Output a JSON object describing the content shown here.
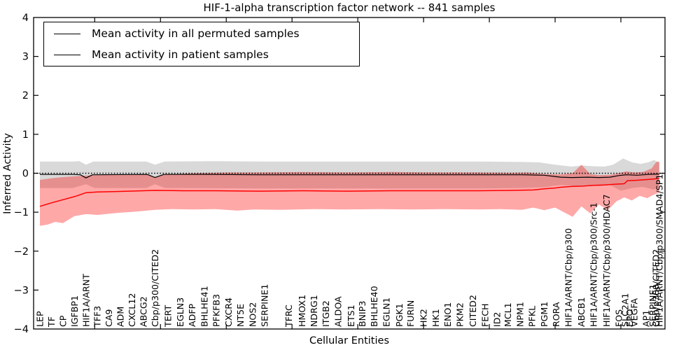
{
  "title": "HIF-1-alpha transcription factor network -- 841 samples",
  "axes": {
    "xlabel": "Cellular Entities",
    "ylabel": "Inferred Activity"
  },
  "legend": {
    "items": [
      {
        "label": "Mean activity in all permuted samples",
        "color": "#000000"
      },
      {
        "label": "Mean activity in patient samples",
        "color": "#ff0000"
      }
    ]
  },
  "chart_data": {
    "type": "line",
    "title": "HIF-1-alpha transcription factor network -- 841 samples",
    "xlabel": "Cellular Entities",
    "ylabel": "Inferred Activity",
    "ylim": [
      -4,
      4
    ],
    "yticks": [
      -4,
      -3,
      -2,
      -1,
      0,
      1,
      2,
      3,
      4
    ],
    "xticks_at": [
      5,
      11,
      17,
      23,
      29,
      35,
      41,
      47,
      53
    ],
    "grid": false,
    "zero_reference_line": 0,
    "legend_position": "upper left",
    "x_unit": "cellular-entity index (labels rotated 90°; rightmost labels overlap illegibly)",
    "categories": [
      {
        "label": "LEP",
        "x": 0
      },
      {
        "label": "TF",
        "x": 1.05
      },
      {
        "label": "CP",
        "x": 2.1
      },
      {
        "label": "IGFBP1",
        "x": 3.15
      },
      {
        "label": "HIF1A/ARNT",
        "x": 4.2
      },
      {
        "label": "TFF3",
        "x": 5.25
      },
      {
        "label": "CA9",
        "x": 6.3
      },
      {
        "label": "ADM",
        "x": 7.35
      },
      {
        "label": "CXCL12",
        "x": 8.4
      },
      {
        "label": "ABCG2",
        "x": 9.45
      },
      {
        "label": "Cbp/p300/CITED2",
        "x": 10.5
      },
      {
        "label": "TERT",
        "x": 11.7
      },
      {
        "label": "EGLN3",
        "x": 12.8
      },
      {
        "label": "ADFP",
        "x": 13.9
      },
      {
        "label": "BHLHE41",
        "x": 15.0
      },
      {
        "label": "PFKFB3",
        "x": 16.1
      },
      {
        "label": "CXCR4",
        "x": 17.2
      },
      {
        "label": "NT5E",
        "x": 18.3
      },
      {
        "label": "NOS2",
        "x": 19.4
      },
      {
        "label": "SERPINE1",
        "x": 20.5
      },
      {
        "label": "TFRC",
        "x": 22.7
      },
      {
        "label": "HMOX1",
        "x": 23.9
      },
      {
        "label": "NDRG1",
        "x": 25.0
      },
      {
        "label": "ITGB2",
        "x": 26.1
      },
      {
        "label": "ALDOA",
        "x": 27.2
      },
      {
        "label": "ETS1",
        "x": 28.4
      },
      {
        "label": "BNIP3",
        "x": 29.4
      },
      {
        "label": "BHLHE40",
        "x": 30.5
      },
      {
        "label": "EGLN1",
        "x": 31.6
      },
      {
        "label": "PGK1",
        "x": 32.8
      },
      {
        "label": "FURIN",
        "x": 33.8
      },
      {
        "label": "HK2",
        "x": 35.0
      },
      {
        "label": "HK1",
        "x": 36.1
      },
      {
        "label": "ENO1",
        "x": 37.2
      },
      {
        "label": "PKM2",
        "x": 38.3
      },
      {
        "label": "CITED2",
        "x": 39.5
      },
      {
        "label": "FECH",
        "x": 40.6
      },
      {
        "label": "ID2",
        "x": 41.7
      },
      {
        "label": "MCL1",
        "x": 42.7
      },
      {
        "label": "NPM1",
        "x": 43.8
      },
      {
        "label": "PFKL",
        "x": 44.9
      },
      {
        "label": "PGM1",
        "x": 46.0
      },
      {
        "label": "RORA",
        "x": 47.1
      },
      {
        "label": "HIF1A/ARNT/Cbp/p300",
        "x": 48.2
      },
      {
        "label": "ABCB1",
        "x": 49.4
      },
      {
        "label": "HIF1A/ARNT/Cbp/p300/Src-1",
        "x": 50.5
      },
      {
        "label": "HIF1A/ARNT/Cbp/p300/HDAC7",
        "x": 51.7
      },
      {
        "label": "FOS",
        "x": 52.8
      },
      {
        "label": "SLC2A1",
        "x": 53.4
      },
      {
        "label": "EPO",
        "x": 53.8
      },
      {
        "label": "VEGFA",
        "x": 54.2
      },
      {
        "label": "AP1",
        "x": 55.3
      },
      {
        "label": "SERPINE1",
        "x": 55.9
      },
      {
        "label": "Cbp/p300/CITED2",
        "x": 56.2
      },
      {
        "label": "HIF1A/ARNT/Cbp/p300/SMAD4/SP1",
        "x": 56.5
      }
    ],
    "series": [
      {
        "name": "Mean activity in all permuted samples",
        "color": "#000000",
        "width": 1.2,
        "points": [
          [
            0,
            -0.03
          ],
          [
            3,
            -0.03
          ],
          [
            3.7,
            -0.04
          ],
          [
            4.2,
            -0.12
          ],
          [
            4.8,
            -0.04
          ],
          [
            9.8,
            -0.03
          ],
          [
            10.5,
            -0.11
          ],
          [
            11.3,
            -0.03
          ],
          [
            15,
            -0.03
          ],
          [
            20,
            -0.04
          ],
          [
            25,
            -0.04
          ],
          [
            30,
            -0.04
          ],
          [
            35,
            -0.04
          ],
          [
            40,
            -0.04
          ],
          [
            44,
            -0.04
          ],
          [
            46,
            -0.05
          ],
          [
            47.5,
            -0.1
          ],
          [
            48.5,
            -0.11
          ],
          [
            50,
            -0.1
          ],
          [
            51,
            -0.11
          ],
          [
            52,
            -0.1
          ],
          [
            52.8,
            -0.06
          ],
          [
            53.5,
            -0.04
          ],
          [
            54.5,
            -0.05
          ],
          [
            55.5,
            -0.03
          ],
          [
            56.5,
            -0.02
          ]
        ]
      },
      {
        "name": "Mean activity in patient samples",
        "color": "#ff0000",
        "width": 1.5,
        "points": [
          [
            0,
            -0.85
          ],
          [
            1.05,
            -0.76
          ],
          [
            2.1,
            -0.68
          ],
          [
            3.15,
            -0.6
          ],
          [
            4.2,
            -0.5
          ],
          [
            5.25,
            -0.48
          ],
          [
            7,
            -0.47
          ],
          [
            10.5,
            -0.44
          ],
          [
            13,
            -0.45
          ],
          [
            16,
            -0.45
          ],
          [
            20,
            -0.46
          ],
          [
            24,
            -0.45
          ],
          [
            28,
            -0.46
          ],
          [
            32,
            -0.45
          ],
          [
            36,
            -0.45
          ],
          [
            40,
            -0.45
          ],
          [
            43,
            -0.44
          ],
          [
            45,
            -0.43
          ],
          [
            46,
            -0.4
          ],
          [
            47,
            -0.38
          ],
          [
            47.5,
            -0.36
          ],
          [
            48.5,
            -0.34
          ],
          [
            49.5,
            -0.33
          ],
          [
            50.5,
            -0.31
          ],
          [
            51.5,
            -0.3
          ],
          [
            52.5,
            -0.28
          ],
          [
            53.3,
            -0.27
          ],
          [
            53.6,
            -0.19
          ],
          [
            54.5,
            -0.18
          ],
          [
            55.5,
            -0.16
          ],
          [
            56,
            -0.15
          ],
          [
            56.5,
            -0.13
          ]
        ]
      }
    ],
    "bands": [
      {
        "name": "permuted-samples-range",
        "color": "#aaaaaa",
        "opacity": 0.45,
        "upper": [
          [
            0,
            0.3
          ],
          [
            3,
            0.3
          ],
          [
            3.6,
            0.31
          ],
          [
            4.2,
            0.22
          ],
          [
            4.9,
            0.3
          ],
          [
            9.7,
            0.3
          ],
          [
            10.5,
            0.22
          ],
          [
            11.4,
            0.3
          ],
          [
            16,
            0.31
          ],
          [
            20,
            0.3
          ],
          [
            25,
            0.3
          ],
          [
            30,
            0.3
          ],
          [
            35,
            0.3
          ],
          [
            40,
            0.3
          ],
          [
            44,
            0.29
          ],
          [
            45.5,
            0.28
          ],
          [
            47,
            0.22
          ],
          [
            48.5,
            0.17
          ],
          [
            49.5,
            0.2
          ],
          [
            50.5,
            0.18
          ],
          [
            51.5,
            0.17
          ],
          [
            52.3,
            0.22
          ],
          [
            53.2,
            0.38
          ],
          [
            54,
            0.28
          ],
          [
            54.8,
            0.24
          ],
          [
            55.5,
            0.28
          ],
          [
            56,
            0.34
          ],
          [
            56.5,
            0.28
          ]
        ],
        "lower": [
          [
            0,
            -0.38
          ],
          [
            3,
            -0.38
          ],
          [
            4.2,
            -0.28
          ],
          [
            5,
            -0.38
          ],
          [
            9.7,
            -0.38
          ],
          [
            10.5,
            -0.28
          ],
          [
            11.4,
            -0.38
          ],
          [
            20,
            -0.39
          ],
          [
            30,
            -0.39
          ],
          [
            40,
            -0.39
          ],
          [
            44,
            -0.38
          ],
          [
            46,
            -0.36
          ],
          [
            47.5,
            -0.3
          ],
          [
            49,
            -0.33
          ],
          [
            50,
            -0.3
          ],
          [
            51,
            -0.33
          ],
          [
            52,
            -0.3
          ],
          [
            53,
            -0.45
          ],
          [
            54,
            -0.38
          ],
          [
            55,
            -0.35
          ],
          [
            56,
            -0.42
          ],
          [
            56.5,
            -0.36
          ]
        ]
      },
      {
        "name": "patient-samples-range",
        "color": "#ff0000",
        "opacity": 0.34,
        "upper": [
          [
            0,
            -0.17
          ],
          [
            1,
            -0.13
          ],
          [
            2,
            -0.1
          ],
          [
            3,
            -0.08
          ],
          [
            4.2,
            -0.06
          ],
          [
            6,
            -0.04
          ],
          [
            8,
            -0.03
          ],
          [
            10,
            -0.04
          ],
          [
            10.5,
            -0.1
          ],
          [
            11.3,
            -0.04
          ],
          [
            14,
            0.0
          ],
          [
            17,
            0.02
          ],
          [
            20,
            0.02
          ],
          [
            24,
            0.03
          ],
          [
            28,
            0.02
          ],
          [
            32,
            0.03
          ],
          [
            36,
            0.02
          ],
          [
            40,
            0.02
          ],
          [
            43,
            0.01
          ],
          [
            44.5,
            0.02
          ],
          [
            46,
            -0.02
          ],
          [
            47.5,
            -0.03
          ],
          [
            48.6,
            0.0
          ],
          [
            49.4,
            0.22
          ],
          [
            50.2,
            -0.02
          ],
          [
            51,
            -0.05
          ],
          [
            52,
            -0.04
          ],
          [
            52.8,
            0.0
          ],
          [
            53.5,
            0.05
          ],
          [
            54.2,
            0.02
          ],
          [
            55,
            0.03
          ],
          [
            55.8,
            0.12
          ],
          [
            56.2,
            0.28
          ],
          [
            56.5,
            0.3
          ]
        ],
        "lower": [
          [
            0,
            -1.35
          ],
          [
            0.7,
            -1.32
          ],
          [
            1.4,
            -1.25
          ],
          [
            2.1,
            -1.28
          ],
          [
            3.15,
            -1.1
          ],
          [
            4.2,
            -1.05
          ],
          [
            5.25,
            -1.07
          ],
          [
            7,
            -1.02
          ],
          [
            9,
            -0.98
          ],
          [
            10.5,
            -0.94
          ],
          [
            12,
            -0.92
          ],
          [
            14,
            -0.93
          ],
          [
            16,
            -0.92
          ],
          [
            18,
            -0.96
          ],
          [
            19.5,
            -0.93
          ],
          [
            22,
            -0.94
          ],
          [
            25,
            -0.92
          ],
          [
            28,
            -0.93
          ],
          [
            31,
            -0.92
          ],
          [
            34,
            -0.93
          ],
          [
            37,
            -0.92
          ],
          [
            40,
            -0.93
          ],
          [
            42,
            -0.92
          ],
          [
            44,
            -0.94
          ],
          [
            45,
            -0.88
          ],
          [
            46,
            -0.95
          ],
          [
            47,
            -0.88
          ],
          [
            47.8,
            -1.0
          ],
          [
            48.6,
            -1.12
          ],
          [
            49.4,
            -0.85
          ],
          [
            50.2,
            -1.03
          ],
          [
            51,
            -0.8
          ],
          [
            51.8,
            -0.95
          ],
          [
            52.6,
            -0.72
          ],
          [
            53.3,
            -0.62
          ],
          [
            54,
            -0.7
          ],
          [
            54.7,
            -0.58
          ],
          [
            55.4,
            -0.64
          ],
          [
            56,
            -0.55
          ],
          [
            56.5,
            -0.5
          ]
        ]
      }
    ]
  }
}
